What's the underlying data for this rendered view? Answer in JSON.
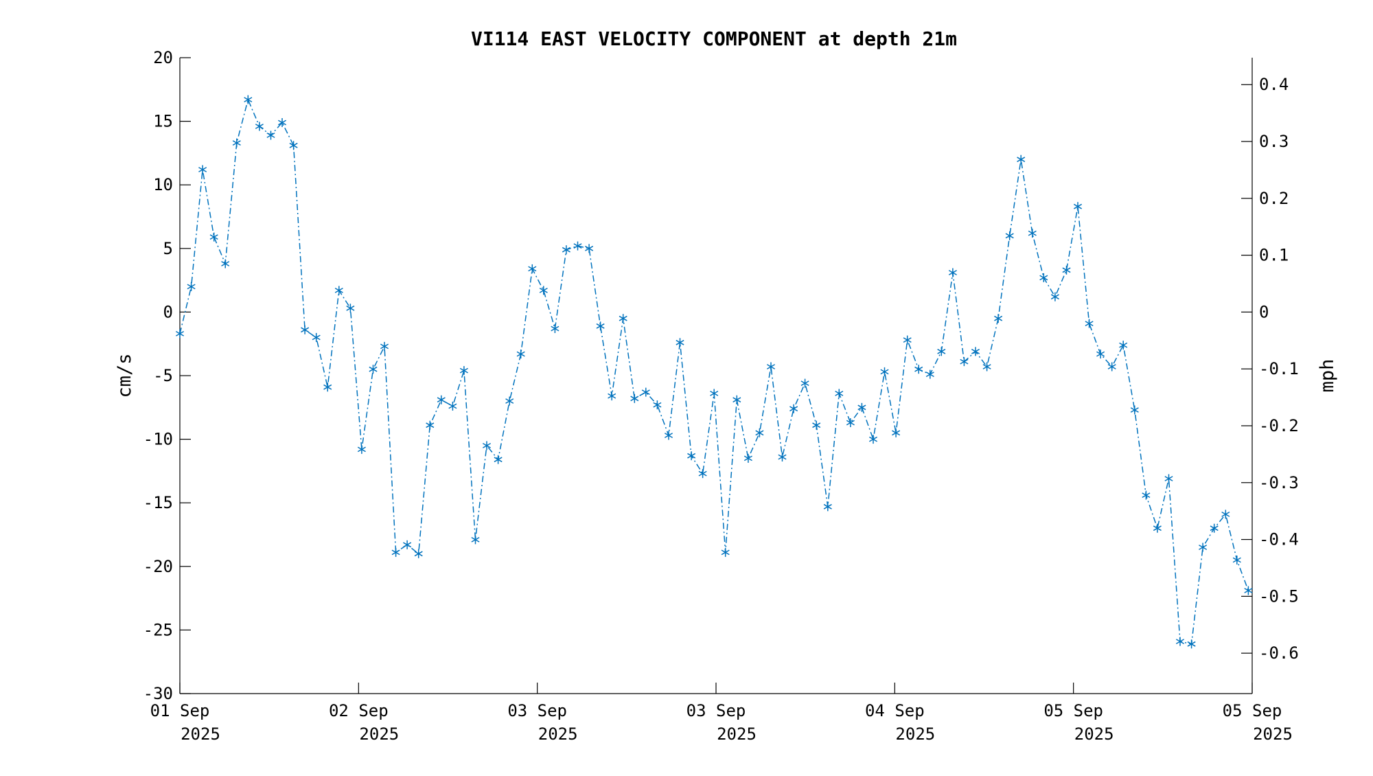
{
  "chart_data": {
    "type": "line",
    "title": "VI114 EAST VELOCITY COMPONENT at depth 21m",
    "ylabel": "cm/s",
    "ylabel_right": "mph",
    "ylim": [
      -30,
      20
    ],
    "yticks": [
      20,
      15,
      10,
      5,
      0,
      -5,
      -10,
      -15,
      -20,
      -25,
      -30
    ],
    "y2ticks": [
      0.4,
      0.3,
      0.2,
      0.1,
      0,
      -0.1,
      -0.2,
      -0.3,
      -0.4,
      -0.5,
      -0.6
    ],
    "y2tick_labels": [
      "0.4",
      "0.3",
      "0.2",
      "0.1",
      "0",
      "-0.1",
      "-0.2",
      "-0.3",
      "-0.4",
      "-0.5",
      "-0.6"
    ],
    "xlim": [
      0,
      6
    ],
    "xticks": [
      {
        "x": 0,
        "line1": "01 Sep",
        "line2": "2025"
      },
      {
        "x": 1,
        "line1": "02 Sep",
        "line2": "2025"
      },
      {
        "x": 2,
        "line1": "03 Sep",
        "line2": "2025"
      },
      {
        "x": 3,
        "line1": "03 Sep",
        "line2": "2025"
      },
      {
        "x": 4,
        "line1": "04 Sep",
        "line2": "2025"
      },
      {
        "x": 5,
        "line1": "05 Sep",
        "line2": "2025"
      },
      {
        "x": 6,
        "line1": "05 Sep",
        "line2": "2025"
      }
    ],
    "grid": false,
    "line_style": "dash-dot",
    "marker": "asterisk",
    "color": "#0072BD",
    "series": [
      {
        "x": [
          0.0,
          0.0636,
          0.1272,
          0.1908,
          0.2544,
          0.318,
          0.3816,
          0.4452,
          0.5088,
          0.5724,
          0.636,
          0.6996,
          0.7632,
          0.8268,
          0.8904,
          0.954,
          1.0176,
          1.0812,
          1.1448,
          1.2084,
          1.272,
          1.3356,
          1.3992,
          1.4628,
          1.5264,
          1.59,
          1.6536,
          1.7172,
          1.7808,
          1.8444,
          1.908,
          1.9716,
          2.0352,
          2.0988,
          2.1624,
          2.226,
          2.2896,
          2.3532,
          2.4168,
          2.4804,
          2.544,
          2.6076,
          2.6712,
          2.7348,
          2.7984,
          2.862,
          2.9256,
          2.9892,
          3.0528,
          3.1164,
          3.18,
          3.2436,
          3.3072,
          3.3708,
          3.4344,
          3.498,
          3.5616,
          3.6252,
          3.6888,
          3.7524,
          3.816,
          3.8796,
          3.9432,
          4.0068,
          4.0704,
          4.134,
          4.1976,
          4.2612,
          4.3248,
          4.3884,
          4.452,
          4.5156,
          4.5792,
          4.6428,
          4.7064,
          4.77,
          4.8336,
          4.8972,
          4.9608,
          5.0244,
          5.088,
          5.1516,
          5.2152,
          5.2788,
          5.3424,
          5.406,
          5.4696,
          5.5332,
          5.5968,
          5.6604,
          5.724,
          5.7876,
          5.8512,
          5.9148,
          5.9784
        ],
        "values": [
          -1.7,
          2.0,
          11.2,
          5.9,
          3.8,
          13.3,
          16.7,
          14.6,
          13.9,
          14.9,
          13.1,
          -1.4,
          -2.0,
          -5.9,
          1.7,
          0.3,
          -10.8,
          -4.5,
          -2.7,
          -18.9,
          -18.3,
          -19.0,
          -8.9,
          -6.9,
          -7.4,
          -4.6,
          -17.9,
          -10.5,
          -11.6,
          -7.0,
          -3.3,
          3.4,
          1.7,
          -1.3,
          4.9,
          5.2,
          5.0,
          -1.1,
          -6.6,
          -0.5,
          -6.8,
          -6.3,
          -7.3,
          -9.7,
          -2.4,
          -11.3,
          -12.7,
          -6.4,
          -18.9,
          -6.9,
          -11.5,
          -9.5,
          -4.3,
          -11.4,
          -7.6,
          -5.6,
          -8.9,
          -15.3,
          -6.4,
          -8.7,
          -7.5,
          -10.0,
          -4.7,
          -9.5,
          -2.2,
          -4.5,
          -4.9,
          -3.1,
          3.1,
          -3.9,
          -3.1,
          -4.3,
          -0.5,
          6.0,
          12.0,
          6.2,
          2.7,
          1.2,
          3.3,
          8.3,
          -0.9,
          -3.3,
          -4.3,
          -2.6,
          -7.7,
          -14.4,
          -17.0,
          -13.1,
          -25.9,
          -26.1,
          -18.5,
          -17.0,
          -15.9,
          -19.5,
          -21.9
        ]
      }
    ]
  }
}
